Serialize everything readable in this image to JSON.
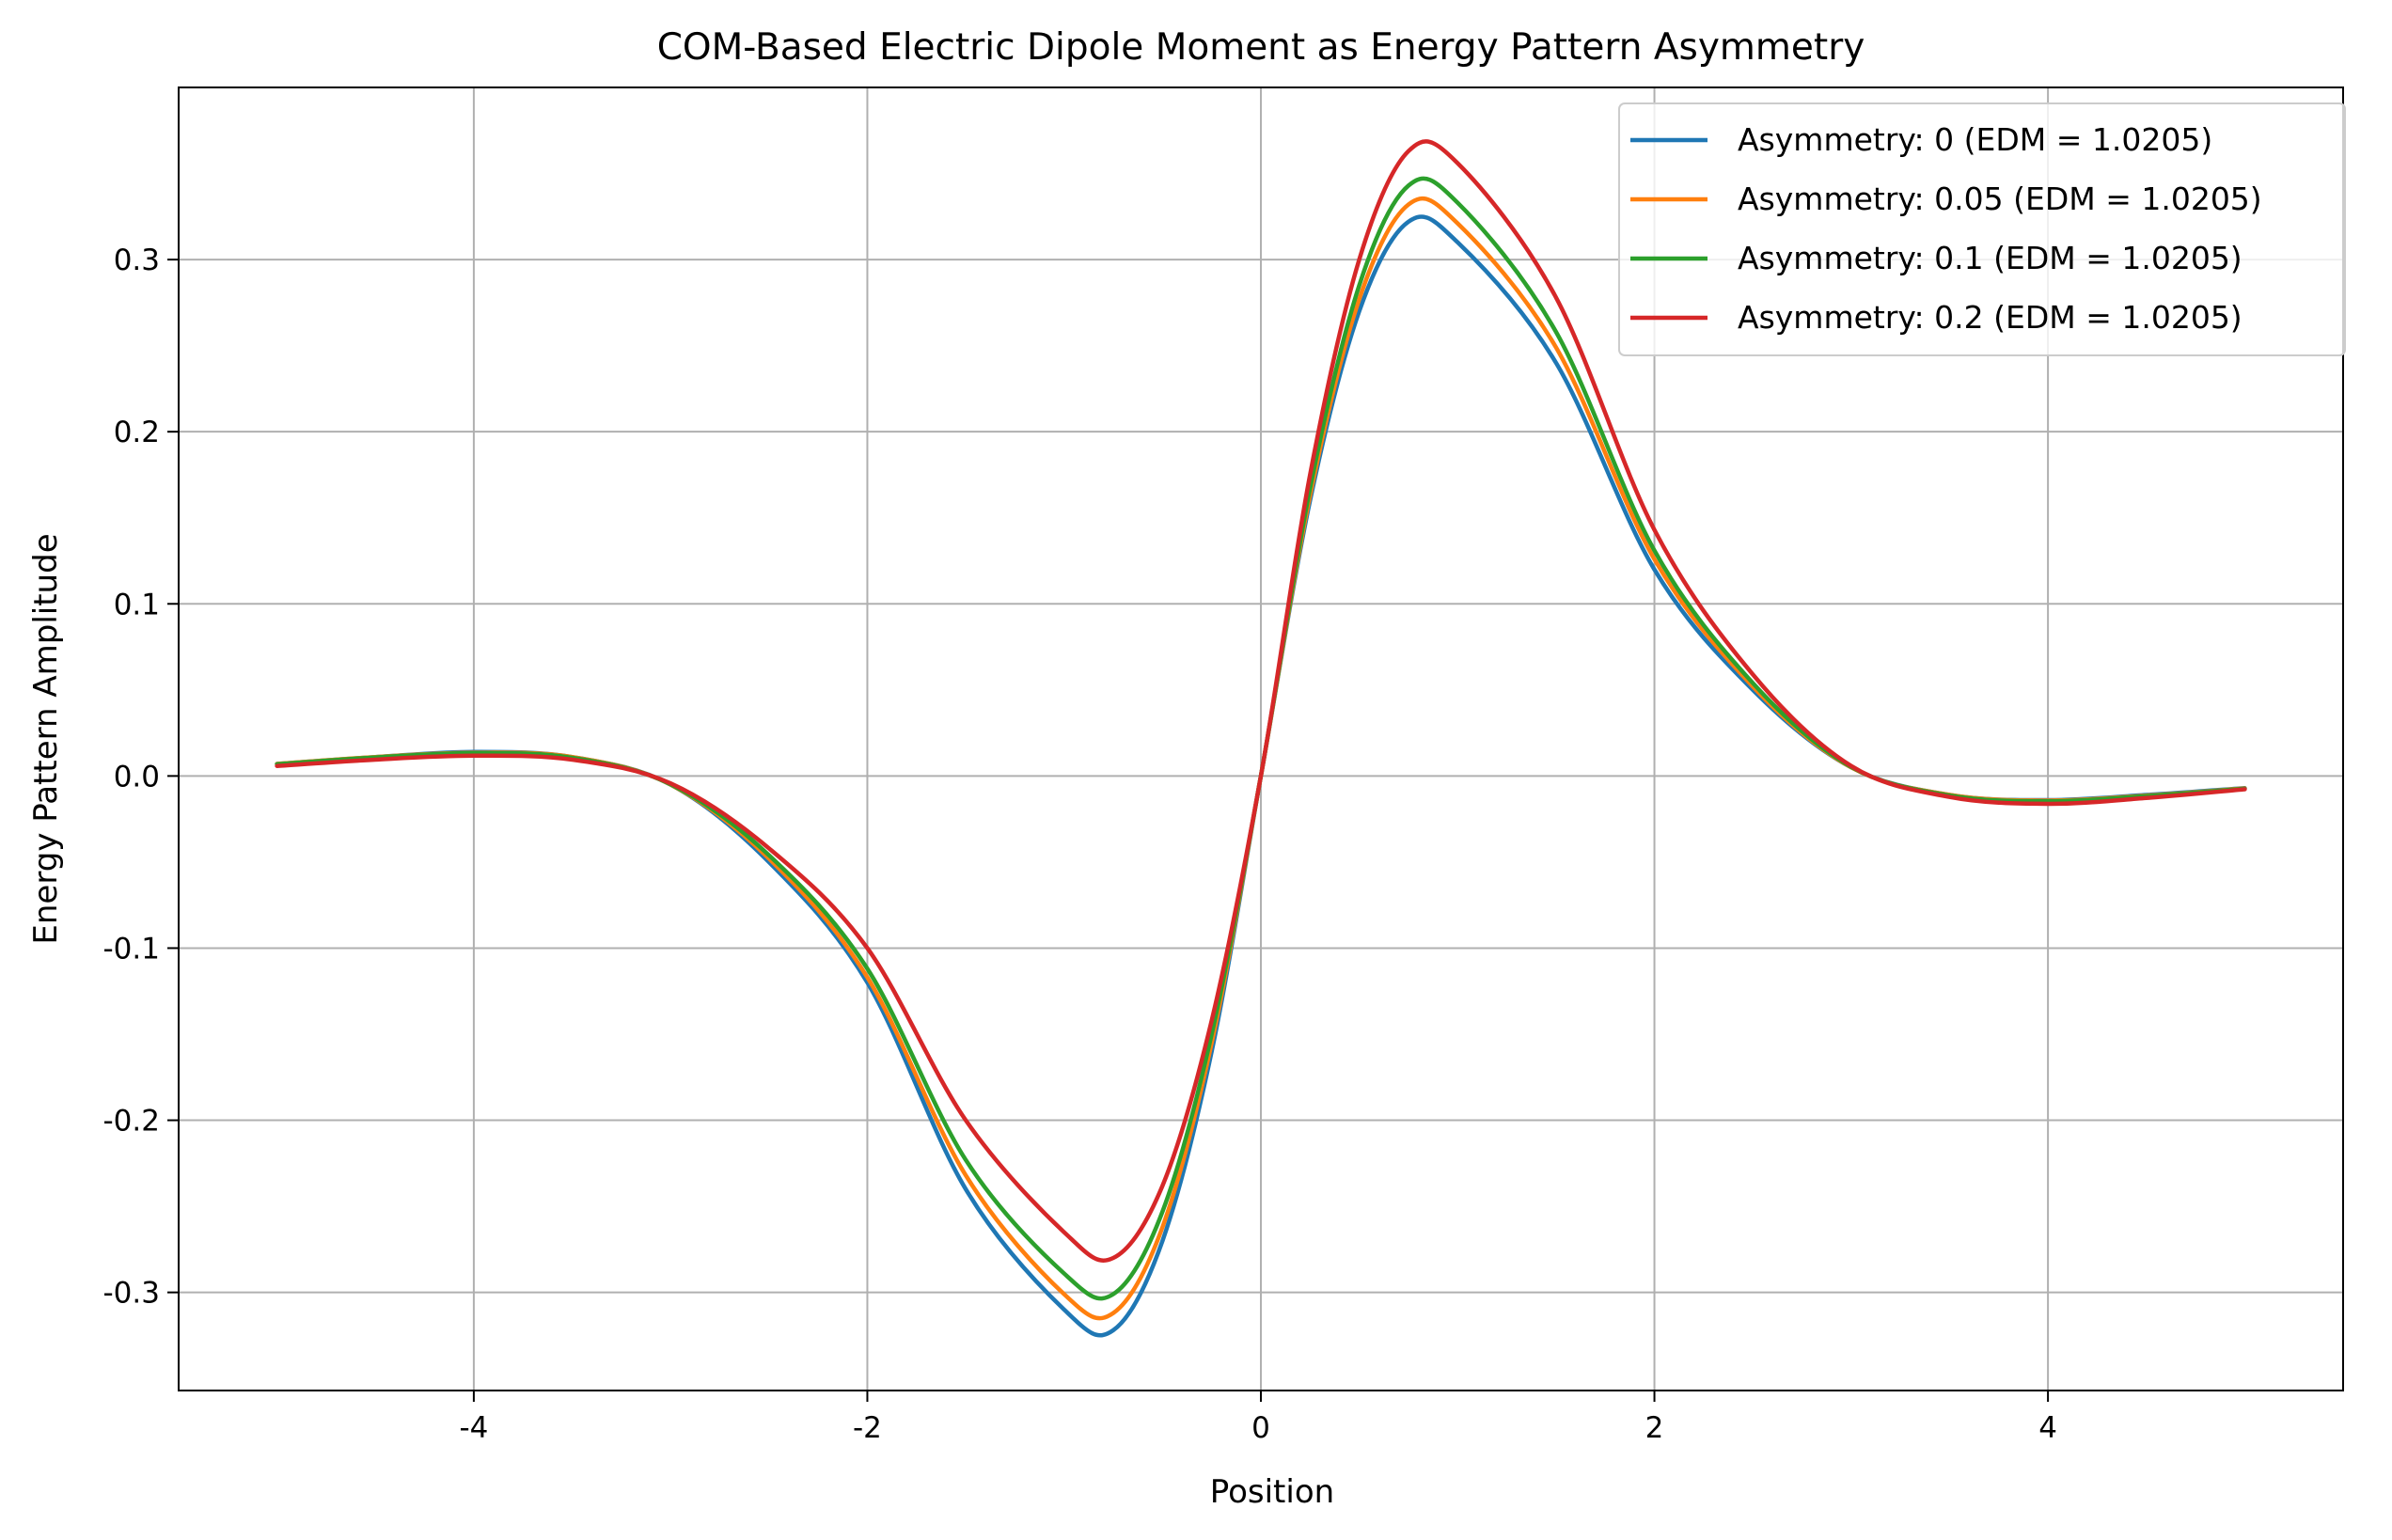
{
  "chart_data": {
    "type": "line",
    "title": "COM-Based Electric Dipole Moment as Energy Pattern Asymmetry",
    "xlabel": "Position",
    "ylabel": "Energy Pattern Amplitude",
    "xlim": [
      -5.5,
      5.5
    ],
    "ylim": [
      -0.357,
      0.4
    ],
    "xticks": [
      -4,
      -2,
      0,
      2,
      4
    ],
    "xtick_labels": [
      "-4",
      "-2",
      "0",
      "2",
      "4"
    ],
    "yticks": [
      -0.3,
      -0.2,
      -0.1,
      0.0,
      0.1,
      0.2,
      0.3
    ],
    "ytick_labels": [
      "-0.3",
      "-0.2",
      "-0.1",
      "0.0",
      "0.1",
      "0.2",
      "0.3"
    ],
    "grid": true,
    "legend_position": "top-right",
    "x": [
      -5.0,
      -4.5,
      -4.0,
      -3.5,
      -3.0,
      -2.5,
      -2.0,
      -1.5,
      -1.0,
      -0.75,
      -0.5,
      -0.25,
      0.0,
      0.25,
      0.5,
      0.75,
      1.0,
      1.5,
      2.0,
      2.5,
      3.0,
      3.5,
      4.0,
      4.5,
      5.0
    ],
    "series": [
      {
        "name": "Asymmetry: 0 (EDM = 1.0205)",
        "color": "#1f77b4",
        "values": [
          0.007,
          0.011,
          0.014,
          0.011,
          -0.005,
          -0.05,
          -0.12,
          -0.24,
          -0.31,
          -0.322,
          -0.27,
          -0.16,
          0.0,
          0.16,
          0.27,
          0.322,
          0.31,
          0.24,
          0.12,
          0.05,
          0.005,
          -0.011,
          -0.014,
          -0.011,
          -0.007
        ]
      },
      {
        "name": "Asymmetry: 0.05 (EDM = 1.0205)",
        "color": "#ff7f0e",
        "values": [
          0.007,
          0.011,
          0.0135,
          0.011,
          -0.005,
          -0.048,
          -0.117,
          -0.232,
          -0.301,
          -0.312,
          -0.262,
          -0.155,
          0.0,
          0.163,
          0.277,
          0.332,
          0.321,
          0.249,
          0.126,
          0.052,
          0.005,
          -0.011,
          -0.0143,
          -0.0114,
          -0.0072
        ]
      },
      {
        "name": "Asymmetry: 0.1 (EDM = 1.0205)",
        "color": "#2ca02c",
        "values": [
          0.0068,
          0.0108,
          0.0133,
          0.0106,
          -0.0048,
          -0.046,
          -0.112,
          -0.223,
          -0.289,
          -0.301,
          -0.253,
          -0.15,
          0.0,
          0.167,
          0.285,
          0.343,
          0.333,
          0.258,
          0.131,
          0.054,
          0.0053,
          -0.0113,
          -0.0147,
          -0.0117,
          -0.0074
        ]
      },
      {
        "name": "Asymmetry: 0.2 (EDM = 1.0205)",
        "color": "#d62728",
        "values": [
          0.0058,
          0.0095,
          0.0118,
          0.0095,
          -0.0043,
          -0.042,
          -0.1,
          -0.2,
          -0.265,
          -0.28,
          -0.238,
          -0.142,
          0.0,
          0.175,
          0.3,
          0.363,
          0.356,
          0.278,
          0.143,
          0.059,
          0.0058,
          -0.0122,
          -0.0162,
          -0.0128,
          -0.0077
        ]
      }
    ]
  }
}
